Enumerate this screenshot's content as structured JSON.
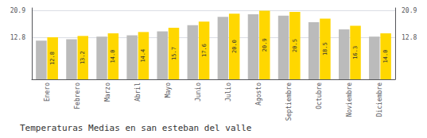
{
  "chart_data": {
    "type": "bar",
    "title": "Temperaturas Medias en san esteban del valle",
    "categories": [
      "Enero",
      "Febrero",
      "Marzo",
      "Abril",
      "Mayo",
      "Junio",
      "Julio",
      "Agosto",
      "Septiembre",
      "Octubre",
      "Noviembre",
      "Diciembre"
    ],
    "series": [
      {
        "color": "#BBBBBB",
        "values": [
          11.8,
          12.2,
          13.0,
          13.4,
          14.6,
          16.5,
          19.0,
          19.8,
          19.4,
          17.4,
          15.2,
          13.0
        ]
      },
      {
        "color": "#FFD700",
        "values": [
          12.8,
          13.2,
          14.0,
          14.4,
          15.7,
          17.6,
          20.0,
          20.9,
          20.5,
          18.5,
          16.3,
          14.0
        ],
        "value_labels": [
          "12.8",
          "13.2",
          "14.0",
          "14.4",
          "15.7",
          "17.6",
          "20.0",
          "20.9",
          "20.5",
          "18.5",
          "16.3",
          "14.0"
        ],
        "data_labels": true
      }
    ],
    "ylim": [
      0,
      21.736
    ],
    "yticks": [
      12.8,
      20.9
    ],
    "y2lim": [
      0,
      21.736
    ],
    "y2ticks": [
      12.8,
      20.9
    ],
    "grid": true
  }
}
